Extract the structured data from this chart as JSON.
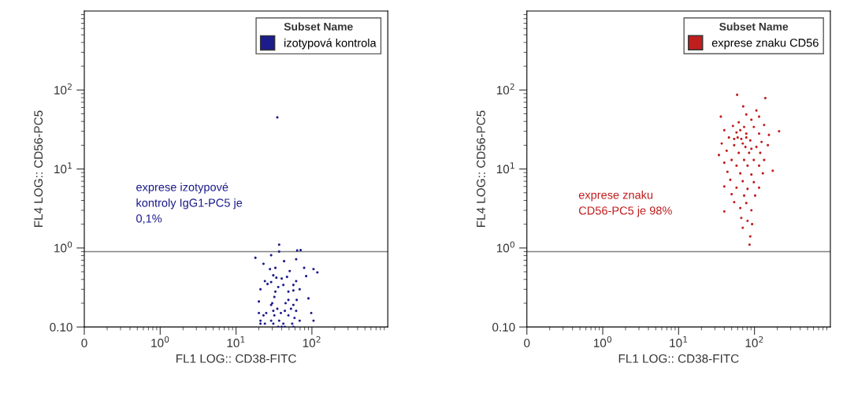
{
  "chart_data": [
    {
      "type": "scatter",
      "xlabel": "FL1 LOG:: CD38-FITC",
      "ylabel": "FL4 LOG:: CD56-PC5",
      "log": "xy",
      "legend": "top right",
      "legend_title": "Subset Name",
      "grid": false,
      "marker": "circle",
      "xlim": [
        0.1,
        1000
      ],
      "ylim": [
        0.1,
        1000
      ],
      "xticks": [
        {
          "value": 0.1,
          "label": "0"
        },
        {
          "value": 1,
          "label": "10$^{0}$"
        },
        {
          "value": 10,
          "label": "10$^{1}$"
        },
        {
          "value": 100,
          "label": "10$^{2}$"
        }
      ],
      "yticks": [
        {
          "value": 0.1,
          "label": "0.10"
        },
        {
          "value": 1,
          "label": "10$^{0}$"
        },
        {
          "value": 10,
          "label": "10$^{1}$"
        },
        {
          "value": 100,
          "label": "10$^{2}$"
        }
      ],
      "ref_lines": [
        {
          "axis": "y",
          "value": 0.9,
          "color": "#808080"
        }
      ],
      "annotations": [
        "exprese izotypové\nkontroly IgG1-PC5 je\n0,1%"
      ],
      "series": [
        {
          "name": "izotypová kontrola",
          "color": "#1c1c8c",
          "x": [
            35,
            37,
            37,
            64,
            71,
            29,
            18,
            23,
            28,
            33,
            43,
            62,
            79,
            105,
            118,
            84,
            31,
            34,
            40,
            51,
            47,
            24,
            26,
            29,
            42,
            57,
            69,
            21,
            36,
            33,
            57,
            49,
            62,
            90,
            32,
            20,
            30,
            29,
            45,
            49,
            57,
            63,
            35,
            31,
            39,
            53,
            44,
            20,
            25,
            62,
            98,
            23,
            32,
            49,
            59,
            21,
            29,
            37,
            69,
            105,
            21,
            24,
            31,
            42,
            55,
            36,
            40,
            44,
            57
          ],
          "values": [
            45,
            1.1,
            0.9,
            0.93,
            0.94,
            0.81,
            0.75,
            0.63,
            0.54,
            0.56,
            0.68,
            0.72,
            0.56,
            0.54,
            0.49,
            0.44,
            0.45,
            0.42,
            0.41,
            0.51,
            0.43,
            0.38,
            0.35,
            0.37,
            0.34,
            0.34,
            0.3,
            0.3,
            0.32,
            0.28,
            0.29,
            0.28,
            0.38,
            0.23,
            0.24,
            0.21,
            0.2,
            0.19,
            0.2,
            0.22,
            0.19,
            0.22,
            0.17,
            0.16,
            0.15,
            0.17,
            0.16,
            0.15,
            0.15,
            0.16,
            0.15,
            0.14,
            0.14,
            0.14,
            0.13,
            0.12,
            0.12,
            0.12,
            0.12,
            0.12,
            0.11,
            0.11,
            0.11,
            0.11,
            0.11,
            0.1,
            0.1,
            0.1,
            0.1
          ]
        }
      ]
    },
    {
      "type": "scatter",
      "xlabel": "FL1 LOG:: CD38-FITC",
      "ylabel": "FL4 LOG:: CD56-PC5",
      "log": "xy",
      "legend": "top right",
      "legend_title": "Subset Name",
      "grid": false,
      "marker": "circle",
      "xlim": [
        0.1,
        1000
      ],
      "ylim": [
        0.1,
        1000
      ],
      "xticks": [
        {
          "value": 0.1,
          "label": "0"
        },
        {
          "value": 1,
          "label": "10$^{0}$"
        },
        {
          "value": 10,
          "label": "10$^{1}$"
        },
        {
          "value": 100,
          "label": "10$^{2}$"
        }
      ],
      "yticks": [
        {
          "value": 0.1,
          "label": "0.10"
        },
        {
          "value": 1,
          "label": "10$^{0}$"
        },
        {
          "value": 10,
          "label": "10$^{1}$"
        },
        {
          "value": 100,
          "label": "10$^{2}$"
        }
      ],
      "ref_lines": [
        {
          "axis": "y",
          "value": 0.9,
          "color": "#808080"
        }
      ],
      "annotations": [
        "exprese znaku\nCD56-PC5 je 98%"
      ],
      "series": [
        {
          "name": "exprese znaku CD56",
          "color": "#c01e1e",
          "x": [
            59,
            139,
            71,
            36,
            211,
            174,
            106,
            78,
            91,
            115,
            62,
            52,
            73,
            98,
            134,
            40,
            58,
            78,
            115,
            155,
            46,
            67,
            88,
            124,
            37,
            54,
            76,
            106,
            150,
            43,
            62,
            85,
            119,
            34,
            50,
            73,
            98,
            134,
            40,
            58,
            81,
            115,
            44,
            65,
            91,
            129,
            48,
            70,
            98,
            40,
            58,
            81,
            115,
            50,
            73,
            102,
            54,
            78,
            40,
            65,
            91,
            67,
            81,
            93,
            70,
            88,
            86,
            60,
            70,
            54,
            78,
            91,
            65
          ],
          "values": [
            87,
            79,
            62,
            46,
            30,
            9.5,
            55,
            49,
            42,
            46,
            39,
            35,
            34,
            34,
            36,
            31,
            29,
            28,
            28,
            27,
            25,
            24,
            23,
            22,
            21,
            20,
            19,
            19,
            20,
            17,
            16,
            16,
            16,
            15,
            13,
            13,
            13,
            13,
            12,
            11,
            11,
            11,
            9.2,
            8.8,
            8.5,
            8.8,
            7.3,
            7.0,
            6.8,
            6.0,
            5.8,
            5.6,
            5.8,
            4.8,
            4.6,
            4.6,
            3.8,
            3.7,
            2.9,
            3.2,
            3.0,
            2.4,
            2.2,
            2.0,
            1.8,
            1.4,
            1.1,
            25,
            21,
            24,
            25,
            18,
            31
          ]
        }
      ]
    }
  ]
}
